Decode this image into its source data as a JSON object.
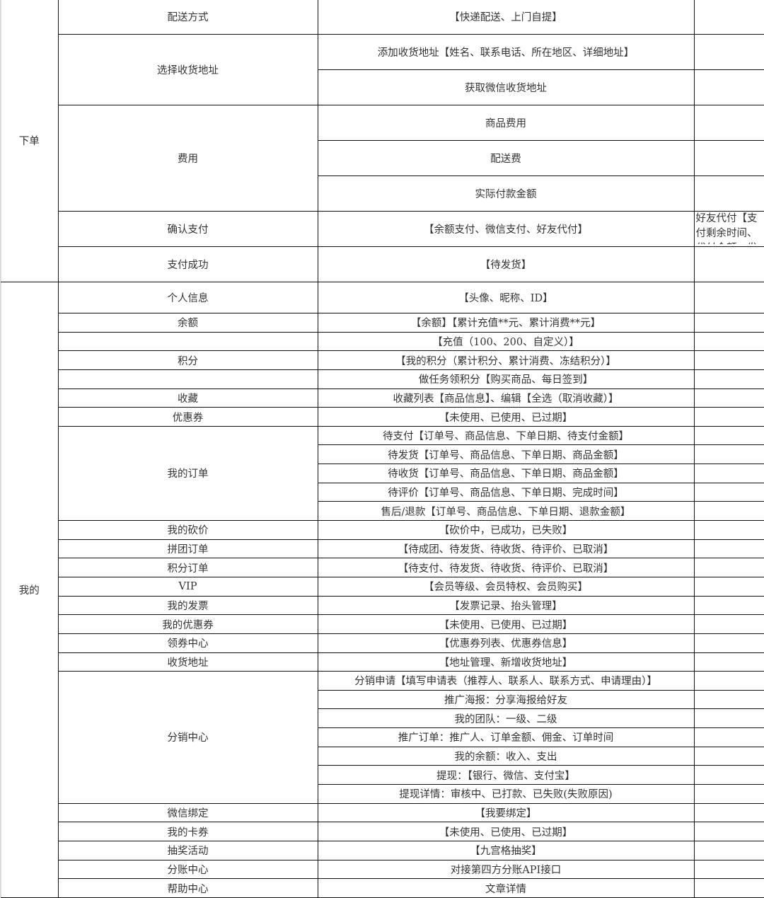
{
  "sections": [
    {
      "label": "下单",
      "rows": [
        {
          "feature": "配送方式",
          "items": [
            "【快递配送、上门自提】"
          ]
        },
        {
          "feature": "选择收货地址",
          "items": [
            "添加收货地址【姓名、联系电话、所在地区、详细地址】",
            "获取微信收货地址"
          ]
        },
        {
          "feature": "费用",
          "items": [
            "商品费用",
            "配送费",
            "实际付款金额"
          ]
        },
        {
          "feature": "确认支付",
          "items": [
            "【余额支付、微信支付、好友代付】"
          ],
          "note": "好友代付【支付剩余时间、代付金额、发"
        },
        {
          "feature": "支付成功",
          "items": [
            "【待发货】"
          ]
        }
      ]
    },
    {
      "label": "我的",
      "rows": [
        {
          "feature": "个人信息",
          "items": [
            "【头像、昵称、ID】"
          ]
        },
        {
          "feature": "余额",
          "items": [
            "【余额】【累计充值**元、累计消费**元】"
          ]
        },
        {
          "feature": "",
          "items": [
            "【充值（100、200、自定义）】"
          ]
        },
        {
          "feature": "积分",
          "items": [
            "【我的积分（累计积分、累计消费、冻结积分）】"
          ]
        },
        {
          "feature": "",
          "items": [
            "做任务领积分【购买商品、每日签到】"
          ]
        },
        {
          "feature": "收藏",
          "items": [
            "收藏列表【商品信息】、编辑【全选（取消收藏）】"
          ]
        },
        {
          "feature": "优惠券",
          "items": [
            "【未使用、已使用、已过期】"
          ]
        },
        {
          "feature": "我的订单",
          "items": [
            "待支付【订单号、商品信息、下单日期、待支付金额】",
            "待发货【订单号、商品信息、下单日期、商品金额】",
            "待收货【订单号、商品信息、下单日期、商品金额】",
            "待评价【订单号、商品信息、下单日期、完成时间】",
            "售后/退款【订单号、商品信息、下单日期、退款金额】"
          ]
        },
        {
          "feature": "我的砍价",
          "items": [
            "【砍价中，已成功，已失败】"
          ]
        },
        {
          "feature": "拼团订单",
          "items": [
            "【待成团、待发货、待收货、待评价、已取消】"
          ]
        },
        {
          "feature": "积分订单",
          "items": [
            "【待支付、待发货、待收货、待评价、已取消】"
          ]
        },
        {
          "feature": "VIP",
          "items": [
            "【会员等级、会员特权、会员购买】"
          ]
        },
        {
          "feature": "我的发票",
          "items": [
            "【发票记录、抬头管理】"
          ]
        },
        {
          "feature": "我的优惠券",
          "items": [
            "【未使用、已使用、已过期】"
          ]
        },
        {
          "feature": "领券中心",
          "items": [
            "【优惠券列表、优惠券信息】"
          ]
        },
        {
          "feature": "收货地址",
          "items": [
            "【地址管理、新增收货地址】"
          ]
        },
        {
          "feature": "分销中心",
          "items": [
            "分销申请【填写申请表（推荐人、联系人、联系方式、申请理由）】",
            "推广海报：分享海报给好友",
            "我的团队：一级、二级",
            "推广订单：推广人、订单金额、佣金、订单时间",
            "我的余额：收入、支出",
            "提现：【银行、微信、支付宝】",
            "提现详情：审核中、已打款、已失败(失败原因)"
          ]
        },
        {
          "feature": "微信绑定",
          "items": [
            "【我要绑定】"
          ]
        },
        {
          "feature": "我的卡券",
          "items": [
            "【未使用、已使用、已过期】"
          ]
        },
        {
          "feature": "抽奖活动",
          "items": [
            "【九宫格抽奖】"
          ]
        },
        {
          "feature": "分账中心",
          "items": [
            "对接第四方分账API接口"
          ]
        },
        {
          "feature": "帮助中心",
          "items": [
            "文章详情"
          ]
        }
      ]
    }
  ]
}
